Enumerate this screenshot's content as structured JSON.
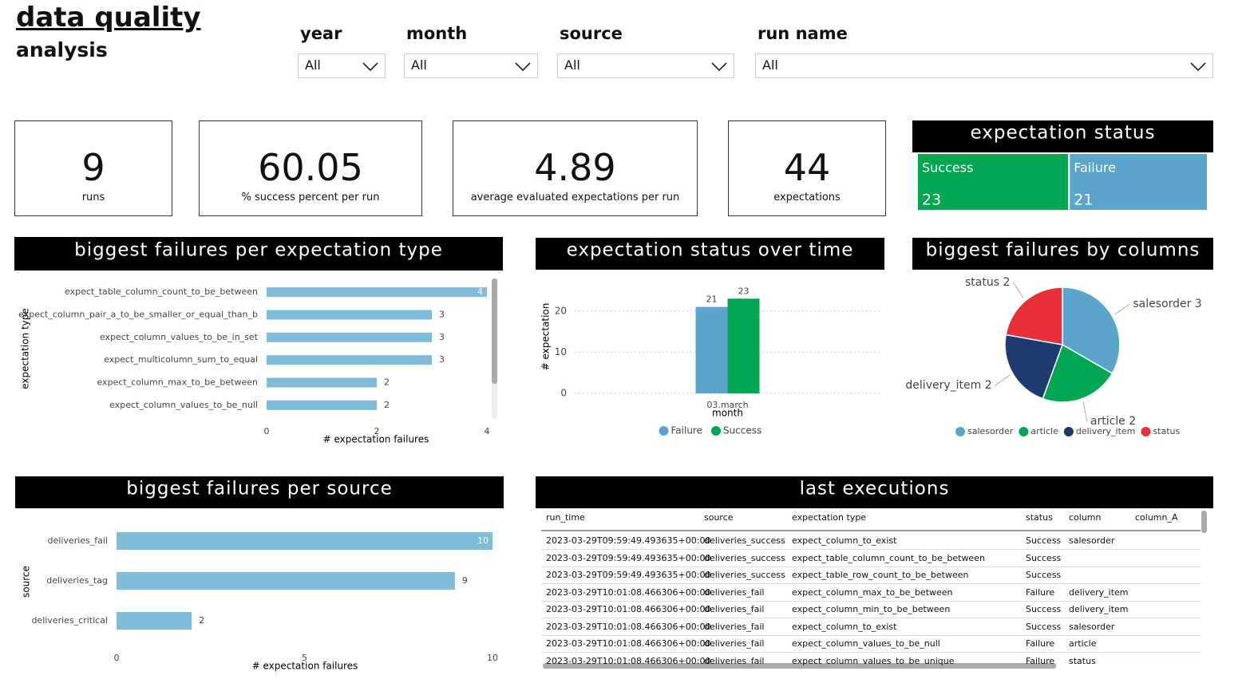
{
  "header": {
    "title": "data quality",
    "subtitle": "analysis"
  },
  "filters": [
    {
      "label": "year",
      "value": "All"
    },
    {
      "label": "month",
      "value": "All"
    },
    {
      "label": "source",
      "value": "All"
    },
    {
      "label": "run name",
      "value": "All"
    }
  ],
  "kpis": [
    {
      "value": 9,
      "label": "runs"
    },
    {
      "value": 60.05,
      "label": "% success percent per run"
    },
    {
      "value": 4.89,
      "label": "average evaluated expectations per run"
    },
    {
      "value": 44,
      "label": "expectations"
    }
  ],
  "chart_data": [
    {
      "type": "treemap",
      "title": "expectation status",
      "categories": [
        "Success",
        "Failure"
      ],
      "values": [
        23,
        21
      ],
      "colors": [
        "#00a651",
        "#5ba5cc"
      ]
    },
    {
      "type": "bar",
      "orientation": "horizontal",
      "title": "biggest failures per expectation type",
      "categories": [
        "expect_table_column_count_to_be_between",
        "expect_column_pair_a_to_be_smaller_or_equal_than_b",
        "expect_column_values_to_be_in_set",
        "expect_multicolumn_sum_to_equal",
        "expect_column_max_to_be_between",
        "expect_column_values_to_be_null"
      ],
      "values": [
        4,
        3,
        3,
        3,
        2,
        2
      ],
      "color": "#7fbcd9",
      "xlabel": "# expectation failures",
      "ylabel": "expectation type",
      "xlim": [
        0,
        4
      ],
      "xticks": [
        0,
        2,
        4
      ]
    },
    {
      "type": "bar",
      "orientation": "vertical",
      "title": "expectation status over time",
      "categories": [
        "03.march"
      ],
      "series": [
        {
          "name": "Failure",
          "color": "#5ba5cc",
          "values": [
            21
          ]
        },
        {
          "name": "Success",
          "color": "#00a651",
          "values": [
            23
          ]
        }
      ],
      "xlabel": "month",
      "ylabel": "# expectation",
      "ylim": [
        0,
        25
      ],
      "yticks": [
        0,
        10,
        20
      ],
      "grid": true
    },
    {
      "type": "pie",
      "title": "biggest failures by columns",
      "categories": [
        "salesorder",
        "article",
        "delivery_item",
        "status"
      ],
      "values": [
        3,
        2,
        2,
        2
      ],
      "colors": [
        "#5ba5cc",
        "#00a651",
        "#1f3a6e",
        "#e8303a"
      ]
    },
    {
      "type": "bar",
      "orientation": "horizontal",
      "title": "biggest failures per source",
      "categories": [
        "deliveries_fail",
        "deliveries_tag",
        "deliveries_critical"
      ],
      "values": [
        10,
        9,
        2
      ],
      "color": "#7fbcd9",
      "xlabel": "# expectation failures",
      "ylabel": "source",
      "xlim": [
        0,
        10
      ],
      "xticks": [
        0,
        5,
        10
      ]
    }
  ],
  "table": {
    "title": "last executions",
    "columns": [
      "run_time",
      "source",
      "expectation type",
      "status",
      "column",
      "column_A"
    ],
    "rows": [
      [
        "2023-03-29T09:59:49.493635+00:00",
        "deliveries_success",
        "expect_column_to_exist",
        "Success",
        "salesorder"
      ],
      [
        "2023-03-29T09:59:49.493635+00:00",
        "deliveries_success",
        "expect_table_column_count_to_be_between",
        "Success",
        null
      ],
      [
        "2023-03-29T09:59:49.493635+00:00",
        "deliveries_success",
        "expect_table_row_count_to_be_between",
        "Success",
        null
      ],
      [
        "2023-03-29T10:01:08.466306+00:00",
        "deliveries_fail",
        "expect_column_max_to_be_between",
        "Failure",
        "delivery_item"
      ],
      [
        "2023-03-29T10:01:08.466306+00:00",
        "deliveries_fail",
        "expect_column_min_to_be_between",
        "Success",
        "delivery_item"
      ],
      [
        "2023-03-29T10:01:08.466306+00:00",
        "deliveries_fail",
        "expect_column_to_exist",
        "Success",
        "salesorder"
      ],
      [
        "2023-03-29T10:01:08.466306+00:00",
        "deliveries_fail",
        "expect_column_values_to_be_null",
        "Failure",
        "article"
      ],
      [
        "2023-03-29T10:01:08.466306+00:00",
        "deliveries_fail",
        "expect_column_values_to_be_unique",
        "Failure",
        "status"
      ]
    ]
  }
}
